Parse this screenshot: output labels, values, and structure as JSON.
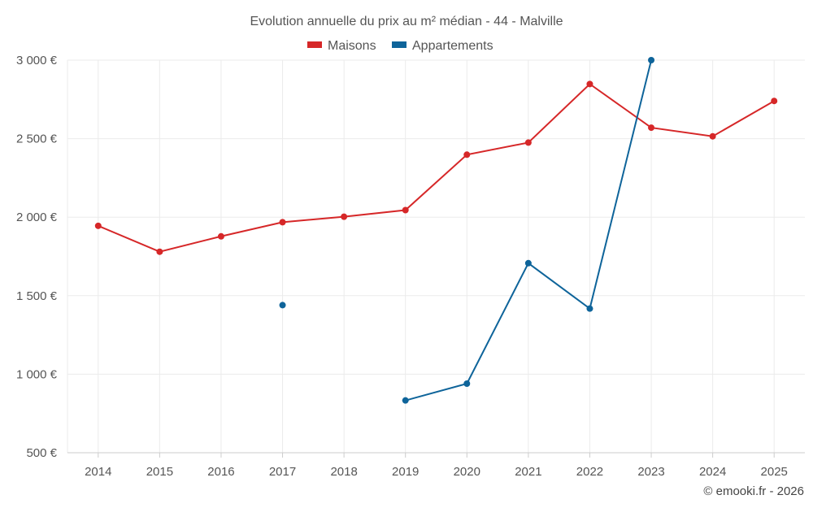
{
  "chart_data": {
    "type": "line",
    "title": "Evolution annuelle du prix au m² médian - 44 - Malville",
    "x": [
      "2014",
      "2015",
      "2016",
      "2017",
      "2018",
      "2019",
      "2020",
      "2021",
      "2022",
      "2023",
      "2024",
      "2025"
    ],
    "ylim": [
      500,
      3000
    ],
    "yticks": [
      500,
      1000,
      1500,
      2000,
      2500,
      3000
    ],
    "ytick_labels": [
      "500 €",
      "1 000 €",
      "1 500 €",
      "2 000 €",
      "2 500 €",
      "3 000 €"
    ],
    "series": [
      {
        "name": "Maisons",
        "color": "#d62728",
        "values": [
          1945,
          1780,
          1878,
          1968,
          2003,
          2045,
          2398,
          2475,
          2848,
          2570,
          2515,
          2740
        ]
      },
      {
        "name": "Appartements",
        "color": "#0e649a",
        "values": [
          null,
          null,
          null,
          1440,
          null,
          833,
          940,
          1707,
          1418,
          3000,
          null,
          null
        ]
      }
    ],
    "legend_position": "top-center",
    "credit": "© emooki.fr - 2026"
  }
}
